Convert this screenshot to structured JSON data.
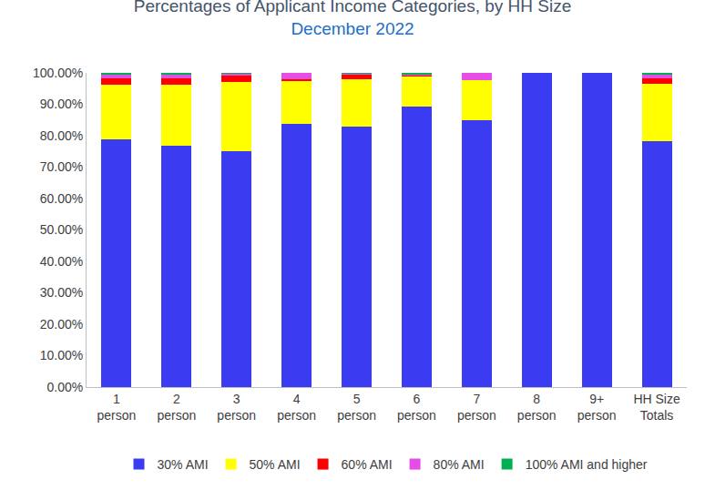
{
  "chart_data": {
    "type": "bar",
    "title": "Percentages of Applicant Income Categories, by HH Size",
    "subtitle": "December 2022",
    "categories": [
      "1 person",
      "2 person",
      "3 person",
      "4 person",
      "5 person",
      "6 person",
      "7 person",
      "8 person",
      "9+ person",
      "HH Size Totals"
    ],
    "series": [
      {
        "name": "30% AMI",
        "color": "#3b3bf2",
        "values": [
          78.8,
          76.8,
          75.0,
          83.8,
          82.8,
          89.4,
          85.0,
          100,
          100,
          78.2
        ]
      },
      {
        "name": "50% AMI",
        "color": "#ffff00",
        "values": [
          17.4,
          19.5,
          22.2,
          13.7,
          15.2,
          9.4,
          12.8,
          0,
          0,
          18.4
        ]
      },
      {
        "name": "60% AMI",
        "color": "#ff0000",
        "values": [
          2.0,
          2.0,
          2.0,
          0.5,
          1.3,
          0.4,
          0,
          0,
          0,
          1.7
        ]
      },
      {
        "name": "80% AMI",
        "color": "#e64ce6",
        "values": [
          1.3,
          1.2,
          0.5,
          2.0,
          0.5,
          0.2,
          2.2,
          0,
          0,
          1.2
        ]
      },
      {
        "name": "100% AMI and higher",
        "color": "#00b050",
        "values": [
          0.5,
          0.5,
          0.3,
          0,
          0.2,
          0.6,
          0,
          0,
          0,
          0.5
        ]
      }
    ],
    "ylim": [
      0,
      100
    ],
    "yticks": [
      {
        "value": 0,
        "label": "0.00%"
      },
      {
        "value": 10,
        "label": "10.00%"
      },
      {
        "value": 20,
        "label": "20.00%"
      },
      {
        "value": 30,
        "label": "30.00%"
      },
      {
        "value": 40,
        "label": "40.00%"
      },
      {
        "value": 50,
        "label": "50.00%"
      },
      {
        "value": 60,
        "label": "60.00%"
      },
      {
        "value": 70,
        "label": "70.00%"
      },
      {
        "value": 80,
        "label": "80.00%"
      },
      {
        "value": 90,
        "label": "90.00%"
      },
      {
        "value": 100,
        "label": "100.00%"
      }
    ],
    "stacked": true,
    "grid": false,
    "legend": "bottom",
    "data_labels": false
  }
}
